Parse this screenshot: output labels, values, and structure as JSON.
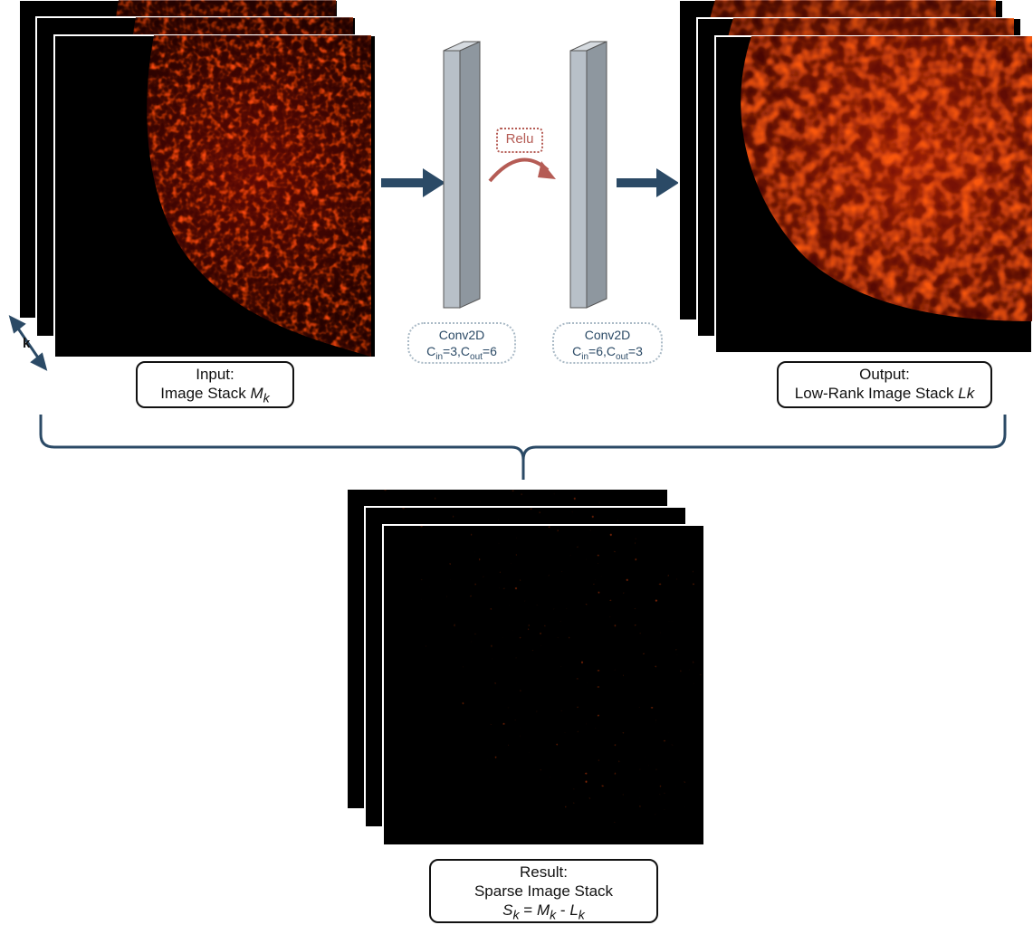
{
  "input_label": {
    "line1": "Input:",
    "line2_prefix": "Image Stack ",
    "var_main": "M",
    "var_sub": "k"
  },
  "output_label": {
    "line1": "Output:",
    "line2_prefix": "Low-Rank Image Stack ",
    "var_main": "L",
    "var_sub": "k"
  },
  "result_label": {
    "line1": "Result:",
    "line2": "Sparse Image Stack",
    "eq_s": "S",
    "eq_m": "M",
    "eq_l": "L",
    "sub": "k",
    "eq_op": "=",
    "eq_minus": "-"
  },
  "conv1": {
    "title": "Conv2D",
    "cin_label": "C",
    "cin_sub": "in",
    "cin_val": "=3,",
    "cout_label": "C",
    "cout_sub": "out",
    "cout_val": "=6"
  },
  "conv2": {
    "title": "Conv2D",
    "cin_label": "C",
    "cin_sub": "in",
    "cin_val": "=6,",
    "cout_label": "C",
    "cout_sub": "out",
    "cout_val": "=3"
  },
  "relu_label": "Relu",
  "stack_axis_label": "k",
  "colors": {
    "arrow": "#2b4a66",
    "relu": "#b55c55",
    "block_front": "#b8c0c8",
    "block_side": "#8e979f",
    "block_top": "#d5dadf"
  }
}
